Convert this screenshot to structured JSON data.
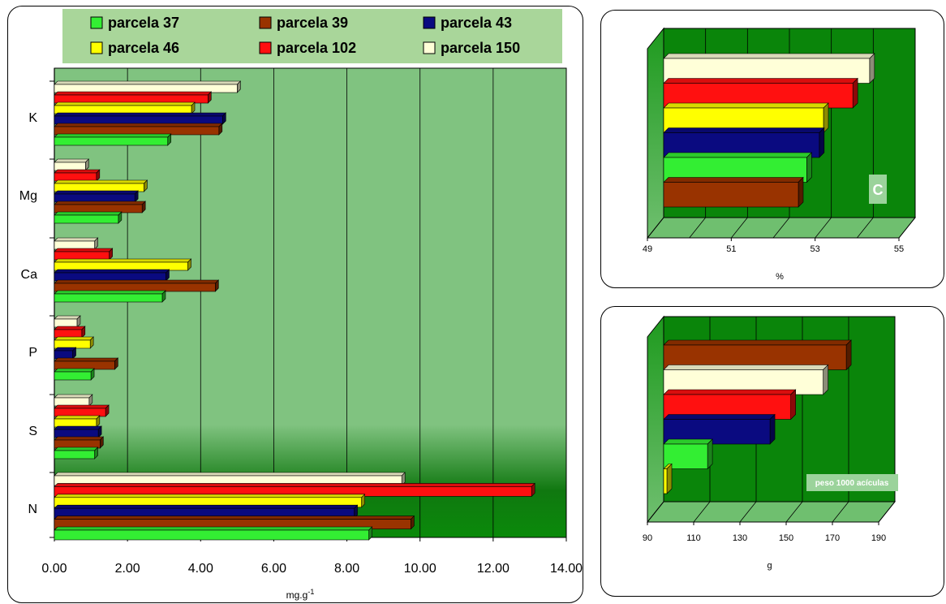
{
  "colors": {
    "parcela_37": "#33ee33",
    "parcela_39": "#993300",
    "parcela_43": "#0a0a80",
    "parcela_46": "#ffff00",
    "parcela_102": "#ff1010",
    "parcela_150": "#ffffd8",
    "plot_bg_main": "#7dc27d",
    "plot_bg_dark": "#0a7a0a",
    "legend_bg": "#a9d69a"
  },
  "chart_data": [
    {
      "id": "main",
      "type": "bar",
      "orientation": "horizontal",
      "legend_position": "top",
      "grid": true,
      "categories": [
        "K",
        "Mg",
        "Ca",
        "P",
        "S",
        "N"
      ],
      "series": [
        {
          "name": "parcela 150",
          "key": "parcela_150",
          "values": [
            5.0,
            0.85,
            1.1,
            0.62,
            0.95,
            9.5
          ]
        },
        {
          "name": "parcela 102",
          "key": "parcela_102",
          "values": [
            4.2,
            1.15,
            1.5,
            0.75,
            1.4,
            13.05
          ]
        },
        {
          "name": "parcela 46",
          "key": "parcela_46",
          "values": [
            3.75,
            2.45,
            3.65,
            0.98,
            1.15,
            8.4
          ]
        },
        {
          "name": "parcela 43",
          "key": "parcela_43",
          "values": [
            4.6,
            2.2,
            3.05,
            0.5,
            1.2,
            8.2
          ]
        },
        {
          "name": "parcela 39",
          "key": "parcela_39",
          "values": [
            4.5,
            2.4,
            4.4,
            1.65,
            1.25,
            9.75
          ]
        },
        {
          "name": "parcela 37",
          "key": "parcela_37",
          "values": [
            3.1,
            1.75,
            2.95,
            1.0,
            1.1,
            8.6
          ]
        }
      ],
      "xlim": [
        0,
        14
      ],
      "xticks": [
        "0.00",
        "2.00",
        "4.00",
        "6.00",
        "8.00",
        "10.00",
        "12.00",
        "14.00"
      ],
      "xlabel_main": "mg.g",
      "xlabel_sup": "-1",
      "legend": [
        [
          "parcela 37",
          "parcela 39",
          "parcela 43"
        ],
        [
          "parcela 46",
          "parcela 102",
          "parcela 150"
        ]
      ]
    },
    {
      "id": "carbon",
      "type": "bar",
      "orientation": "horizontal",
      "grid": true,
      "series_order_top_to_bottom": [
        "parcela_150",
        "parcela_102",
        "parcela_46",
        "parcela_43",
        "parcela_37",
        "parcela_39"
      ],
      "values_top_to_bottom": [
        54.3,
        53.9,
        53.2,
        53.1,
        52.8,
        52.6
      ],
      "xlim": [
        49,
        55
      ],
      "xticks": [
        "49",
        "51",
        "53",
        "55"
      ],
      "xlabel": "%",
      "annotation": "C"
    },
    {
      "id": "weight",
      "type": "bar",
      "orientation": "horizontal",
      "grid": true,
      "series_order_top_to_bottom": [
        "parcela_39",
        "parcela_150",
        "parcela_102",
        "parcela_43",
        "parcela_37",
        "parcela_46"
      ],
      "values_top_to_bottom": [
        176,
        166,
        152,
        143,
        116,
        93
      ],
      "xlim": [
        90,
        190
      ],
      "xticks": [
        "90",
        "110",
        "130",
        "150",
        "170",
        "190"
      ],
      "xlabel": "g",
      "annotation": "peso 1000 acículas"
    }
  ]
}
